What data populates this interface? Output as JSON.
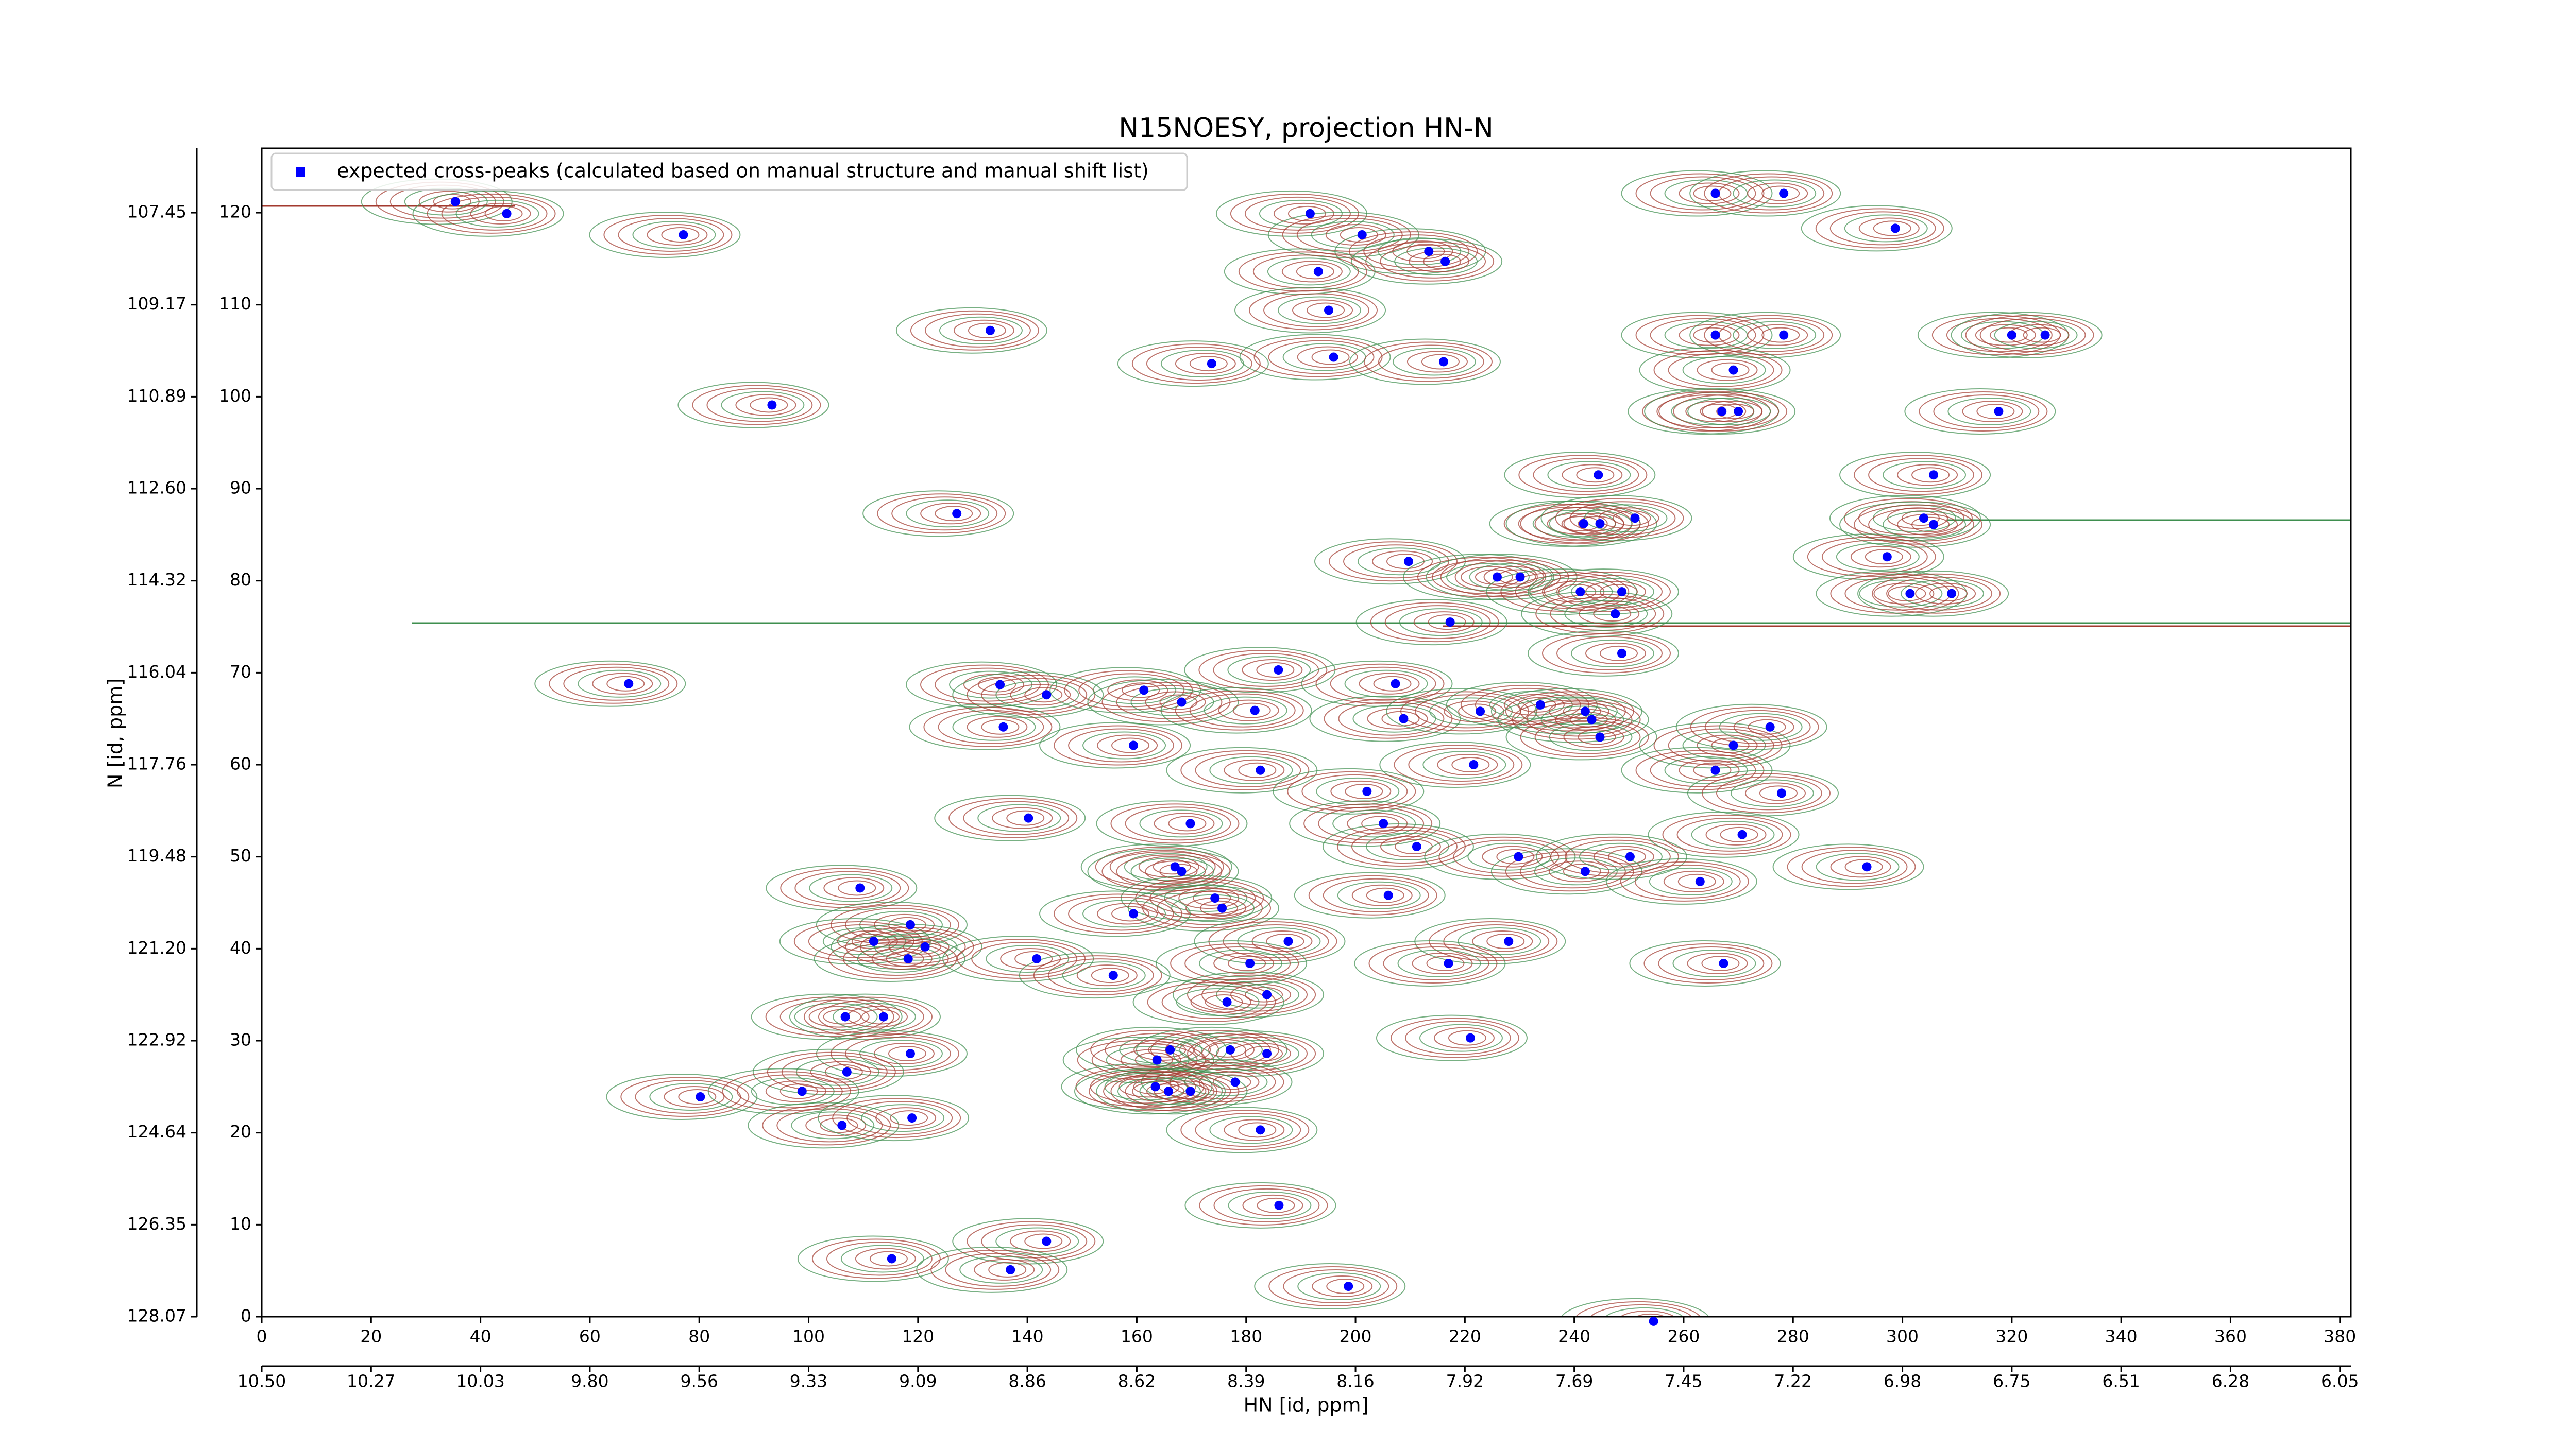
{
  "chart_data": {
    "type": "scatter",
    "title": "N15NOESY, projection HN-N",
    "xlabel": "HN [id, ppm]",
    "ylabel": "N [id, ppm]",
    "legend": "upper left",
    "xlim": [
      0,
      382
    ],
    "ylim": [
      0,
      127
    ],
    "xticks": [
      0,
      20,
      40,
      60,
      80,
      100,
      120,
      140,
      160,
      180,
      200,
      220,
      240,
      260,
      280,
      300,
      320,
      340,
      360,
      380
    ],
    "x2ticks": [
      {
        "value": 0,
        "label": "10.50"
      },
      {
        "value": 20,
        "label": "10.27"
      },
      {
        "value": 40,
        "label": "10.03"
      },
      {
        "value": 60,
        "label": "9.80"
      },
      {
        "value": 80,
        "label": "9.56"
      },
      {
        "value": 100,
        "label": "9.33"
      },
      {
        "value": 120,
        "label": "9.09"
      },
      {
        "value": 140,
        "label": "8.86"
      },
      {
        "value": 160,
        "label": "8.62"
      },
      {
        "value": 180,
        "label": "8.39"
      },
      {
        "value": 200,
        "label": "8.16"
      },
      {
        "value": 220,
        "label": "7.92"
      },
      {
        "value": 240,
        "label": "7.69"
      },
      {
        "value": 260,
        "label": "7.45"
      },
      {
        "value": 280,
        "label": "7.22"
      },
      {
        "value": 300,
        "label": "6.98"
      },
      {
        "value": 320,
        "label": "6.75"
      },
      {
        "value": 340,
        "label": "6.51"
      },
      {
        "value": 360,
        "label": "6.28"
      },
      {
        "value": 380,
        "label": "6.05"
      }
    ],
    "yticks": [
      0,
      10,
      20,
      30,
      40,
      50,
      60,
      70,
      80,
      90,
      100,
      110,
      120
    ],
    "y2ticks": [
      {
        "value": 0,
        "label": "128.07"
      },
      {
        "value": 10,
        "label": "126.35"
      },
      {
        "value": 20,
        "label": "124.64"
      },
      {
        "value": 30,
        "label": "122.92"
      },
      {
        "value": 40,
        "label": "121.20"
      },
      {
        "value": 50,
        "label": "119.48"
      },
      {
        "value": 60,
        "label": "117.76"
      },
      {
        "value": 70,
        "label": "116.04"
      },
      {
        "value": 80,
        "label": "114.32"
      },
      {
        "value": 90,
        "label": "112.60"
      },
      {
        "value": 100,
        "label": "110.89"
      },
      {
        "value": 110,
        "label": "109.17"
      },
      {
        "value": 120,
        "label": "107.45"
      }
    ],
    "series": [
      {
        "name": "expected cross-peaks (calculated based on manual structure and manual shift list)",
        "color": "#0000ff",
        "x": [
          35.4,
          44.8,
          77.1,
          191.7,
          201.2,
          213.4,
          216.4,
          193.2,
          195.1,
          133.2,
          173.7,
          196.0,
          216.1,
          265.8,
          278.3,
          269.1,
          267.0,
          270.0,
          265.8,
          278.3,
          298.7,
          320.0,
          326.1,
          317.6,
          305.7,
          303.9,
          305.7,
          93.3,
          127.1,
          244.4,
          241.7,
          244.7,
          251.1,
          209.7,
          225.9,
          230.1,
          241.1,
          248.7,
          247.5,
          297.2,
          301.4,
          309.0,
          217.3,
          248.7,
          67.1,
          135.0,
          143.5,
          161.3,
          168.2,
          185.9,
          181.6,
          207.3,
          208.8,
          222.8,
          233.8,
          242.0,
          243.2,
          244.7,
          135.6,
          159.4,
          182.6,
          221.6,
          269.1,
          265.8,
          275.8,
          277.9,
          202.1,
          140.2,
          169.8,
          205.1,
          211.2,
          229.8,
          242.0,
          250.2,
          263.0,
          270.7,
          293.5,
          167.0,
          168.2,
          109.4,
          206.0,
          174.3,
          175.6,
          159.4,
          118.6,
          111.9,
          121.3,
          118.2,
          187.7,
          228.0,
          141.7,
          155.7,
          217.0,
          267.3,
          183.8,
          176.5,
          180.7,
          106.7,
          113.7,
          118.6,
          166.1,
          177.1,
          163.7,
          183.8,
          221.0,
          107.0,
          178.0,
          163.4,
          165.8,
          169.8,
          80.2,
          98.8,
          106.1,
          118.9,
          182.6,
          186.0,
          143.5,
          115.2,
          136.9,
          198.7,
          254.5
        ],
        "values": [
          121.2,
          119.9,
          117.6,
          119.9,
          117.6,
          115.8,
          114.7,
          113.6,
          109.4,
          107.2,
          103.6,
          104.3,
          103.8,
          106.7,
          106.7,
          102.9,
          98.4,
          98.4,
          122.1,
          122.1,
          118.3,
          106.7,
          106.7,
          98.4,
          91.5,
          86.8,
          86.1,
          99.1,
          87.3,
          91.5,
          86.2,
          86.2,
          86.8,
          82.1,
          80.4,
          80.4,
          78.8,
          78.8,
          76.4,
          82.6,
          78.6,
          78.6,
          75.5,
          72.1,
          68.8,
          68.7,
          67.6,
          68.1,
          66.8,
          70.3,
          65.9,
          68.8,
          65.0,
          65.8,
          66.5,
          65.8,
          64.9,
          63.0,
          64.1,
          62.1,
          59.4,
          60.0,
          62.1,
          59.4,
          64.1,
          56.9,
          57.1,
          54.2,
          53.6,
          53.6,
          51.1,
          50.0,
          48.4,
          50.0,
          47.3,
          52.4,
          48.9,
          48.9,
          48.4,
          46.6,
          45.8,
          45.5,
          44.4,
          43.8,
          42.6,
          40.8,
          40.2,
          38.9,
          40.8,
          40.8,
          38.9,
          37.1,
          38.4,
          38.4,
          35.0,
          34.2,
          38.4,
          32.6,
          32.6,
          28.6,
          29.0,
          29.0,
          27.9,
          28.6,
          30.3,
          26.6,
          25.5,
          25.0,
          24.5,
          24.5,
          23.9,
          24.5,
          20.8,
          21.6,
          20.3,
          12.1,
          8.2,
          6.3,
          5.1,
          3.3,
          -0.5
        ]
      }
    ]
  }
}
